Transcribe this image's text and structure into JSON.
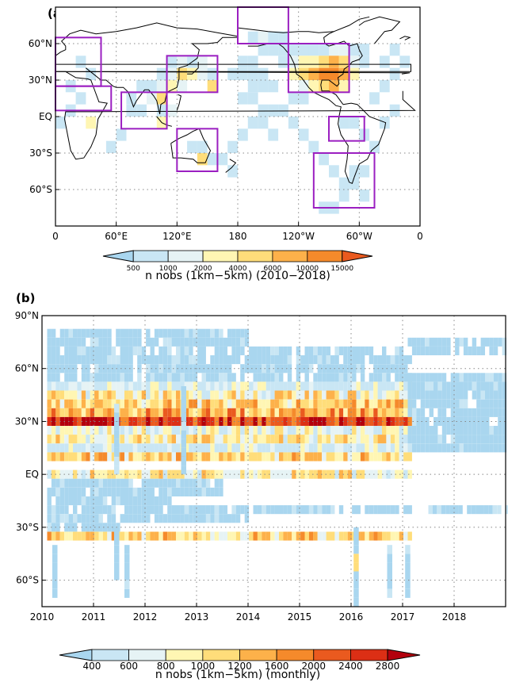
{
  "chart_data": [
    {
      "type": "heatmap",
      "panel_label": "(a)",
      "xticks": [
        "0",
        "60°E",
        "120°E",
        "180",
        "120°W",
        "60°W",
        "0"
      ],
      "yticks": [
        "60°N",
        "30°N",
        "EQ",
        "30°S",
        "60°S"
      ],
      "xlim": [
        0,
        360
      ],
      "ylim": [
        -90,
        90
      ],
      "grid": true,
      "colorbar": {
        "label": "n nobs (1km−5km) (2010−2018)",
        "levels": [
          "500",
          "1000",
          "2000",
          "4000",
          "6000",
          "10000",
          "15000"
        ],
        "colors": [
          "#a9d6ef",
          "#c9e6f4",
          "#e6f3f5",
          "#fff6b3",
          "#ffdd7a",
          "#fdb14a",
          "#f58a2b",
          "#ea5a1f"
        ]
      },
      "cells": [
        [
          225,
          55,
          1
        ],
        [
          235,
          55,
          1
        ],
        [
          245,
          55,
          1
        ],
        [
          255,
          55,
          1
        ],
        [
          265,
          55,
          1
        ],
        [
          275,
          55,
          2
        ],
        [
          285,
          55,
          2
        ],
        [
          295,
          55,
          1
        ],
        [
          305,
          55,
          1
        ],
        [
          225,
          45,
          1
        ],
        [
          235,
          45,
          2
        ],
        [
          245,
          45,
          3
        ],
        [
          255,
          45,
          3
        ],
        [
          265,
          45,
          4
        ],
        [
          275,
          45,
          5
        ],
        [
          285,
          45,
          4
        ],
        [
          295,
          45,
          2
        ],
        [
          305,
          45,
          1
        ],
        [
          235,
          35,
          3
        ],
        [
          245,
          35,
          4
        ],
        [
          255,
          35,
          5
        ],
        [
          265,
          35,
          6
        ],
        [
          275,
          35,
          6
        ],
        [
          285,
          35,
          5
        ],
        [
          295,
          35,
          3
        ],
        [
          245,
          25,
          2
        ],
        [
          255,
          25,
          3
        ],
        [
          265,
          25,
          4
        ],
        [
          275,
          25,
          5
        ],
        [
          285,
          25,
          3
        ],
        [
          115,
          45,
          1
        ],
        [
          125,
          45,
          2
        ],
        [
          135,
          45,
          1
        ],
        [
          145,
          45,
          2
        ],
        [
          105,
          35,
          1
        ],
        [
          115,
          35,
          2
        ],
        [
          125,
          35,
          4
        ],
        [
          135,
          35,
          3
        ],
        [
          145,
          35,
          2
        ],
        [
          155,
          35,
          1
        ],
        [
          105,
          25,
          2
        ],
        [
          115,
          25,
          3
        ],
        [
          125,
          25,
          2
        ],
        [
          155,
          25,
          4
        ],
        [
          75,
          15,
          1
        ],
        [
          95,
          15,
          2
        ],
        [
          105,
          15,
          4
        ],
        [
          105,
          5,
          1
        ],
        [
          115,
          5,
          2
        ],
        [
          105,
          -5,
          3
        ],
        [
          85,
          5,
          1
        ],
        [
          35,
          -5,
          3
        ],
        [
          145,
          -35,
          4
        ],
        [
          135,
          -25,
          1
        ],
        [
          145,
          -25,
          1
        ],
        [
          155,
          -35,
          1
        ],
        [
          195,
          65,
          1
        ],
        [
          205,
          65,
          2
        ],
        [
          215,
          65,
          1
        ],
        [
          225,
          65,
          1
        ],
        [
          205,
          55,
          1
        ],
        [
          215,
          55,
          1
        ],
        [
          185,
          45,
          1
        ],
        [
          195,
          45,
          1
        ],
        [
          175,
          35,
          1
        ],
        [
          185,
          35,
          1
        ],
        [
          195,
          35,
          1
        ],
        [
          205,
          35,
          1
        ],
        [
          195,
          25,
          1
        ],
        [
          205,
          25,
          1
        ],
        [
          215,
          25,
          1
        ],
        [
          185,
          15,
          1
        ],
        [
          195,
          15,
          1
        ],
        [
          205,
          5,
          1
        ],
        [
          215,
          5,
          1
        ],
        [
          195,
          -5,
          1
        ],
        [
          205,
          -5,
          1
        ],
        [
          215,
          -15,
          1
        ],
        [
          185,
          -15,
          1
        ],
        [
          175,
          -25,
          1
        ],
        [
          165,
          -35,
          1
        ],
        [
          175,
          -45,
          1
        ],
        [
          235,
          15,
          1
        ],
        [
          245,
          15,
          1
        ],
        [
          225,
          5,
          1
        ],
        [
          235,
          -5,
          1
        ],
        [
          245,
          -15,
          1
        ],
        [
          255,
          -25,
          1
        ],
        [
          265,
          -35,
          1
        ],
        [
          275,
          -45,
          1
        ],
        [
          285,
          -55,
          1
        ],
        [
          295,
          -55,
          1
        ],
        [
          305,
          -65,
          1
        ],
        [
          285,
          -65,
          1
        ],
        [
          295,
          -45,
          1
        ],
        [
          305,
          -45,
          1
        ],
        [
          285,
          -5,
          1
        ],
        [
          295,
          -5,
          1
        ],
        [
          305,
          -15,
          1
        ],
        [
          315,
          -25,
          1
        ],
        [
          325,
          -5,
          1
        ],
        [
          335,
          5,
          1
        ],
        [
          315,
          15,
          1
        ],
        [
          325,
          25,
          1
        ],
        [
          335,
          35,
          1
        ],
        [
          345,
          45,
          1
        ],
        [
          325,
          45,
          1
        ],
        [
          335,
          55,
          1
        ],
        [
          25,
          45,
          1
        ],
        [
          35,
          35,
          1
        ],
        [
          15,
          25,
          1
        ],
        [
          25,
          15,
          1
        ],
        [
          15,
          5,
          1
        ],
        [
          5,
          -5,
          1
        ],
        [
          85,
          25,
          1
        ],
        [
          95,
          25,
          1
        ],
        [
          75,
          5,
          1
        ],
        [
          65,
          -15,
          1
        ],
        [
          55,
          -25,
          1
        ],
        [
          265,
          -75,
          1
        ],
        [
          275,
          -75,
          1
        ]
      ],
      "boxes": [
        {
          "lon": [
            0,
            45
          ],
          "lat": [
            25,
            65
          ]
        },
        {
          "lon": [
            0,
            55
          ],
          "lat": [
            5,
            25
          ]
        },
        {
          "lon": [
            65,
            110
          ],
          "lat": [
            -10,
            20
          ]
        },
        {
          "lon": [
            110,
            160
          ],
          "lat": [
            20,
            50
          ]
        },
        {
          "lon": [
            120,
            160
          ],
          "lat": [
            -45,
            -10
          ]
        },
        {
          "lon": [
            180,
            230
          ],
          "lat": [
            60,
            90
          ]
        },
        {
          "lon": [
            230,
            290
          ],
          "lat": [
            20,
            60
          ]
        },
        {
          "lon": [
            270,
            305
          ],
          "lat": [
            -20,
            0
          ]
        },
        {
          "lon": [
            255,
            315
          ],
          "lat": [
            -75,
            -30
          ]
        }
      ]
    },
    {
      "type": "heatmap",
      "panel_label": "(b)",
      "xticks": [
        "2010",
        "2011",
        "2012",
        "2013",
        "2014",
        "2015",
        "2016",
        "2017",
        "2018"
      ],
      "yticks": [
        "90°N",
        "60°N",
        "30°N",
        "EQ",
        "30°S",
        "60°S"
      ],
      "xlim": [
        2010,
        2019
      ],
      "ylim": [
        -75,
        90
      ],
      "grid": true,
      "colorbar": {
        "label": "n nobs (1km−5km) (monthly)",
        "levels": [
          "400",
          "600",
          "800",
          "1000",
          "1200",
          "1600",
          "2000",
          "2400",
          "2800"
        ],
        "colors": [
          "#a9d6ef",
          "#c9e6f4",
          "#e6f3f5",
          "#fff6b3",
          "#ffdd7a",
          "#fdb14a",
          "#f58a2b",
          "#ea5a1f",
          "#dc2f15",
          "#b3000d"
        ]
      },
      "bands": [
        {
          "lat": 80,
          "start": 2010.1,
          "end": 2014.0,
          "base": 0
        },
        {
          "lat": 75,
          "start": 2010.1,
          "end": 2014.0,
          "base": 0
        },
        {
          "lat": 70,
          "start": 2010.1,
          "end": 2017.1,
          "base": 0
        },
        {
          "lat": 65,
          "start": 2010.1,
          "end": 2017.1,
          "base": 0
        },
        {
          "lat": 60,
          "start": 2010.1,
          "end": 2017.1,
          "base": 0
        },
        {
          "lat": 75,
          "start": 2017.1,
          "end": 2019.0,
          "base": 0
        },
        {
          "lat": 70,
          "start": 2017.1,
          "end": 2019.0,
          "base": 0
        },
        {
          "lat": 55,
          "start": 2010.1,
          "end": 2017.1,
          "base": 0
        },
        {
          "lat": 50,
          "start": 2010.1,
          "end": 2017.1,
          "base": 1
        },
        {
          "lat": 45,
          "start": 2010.1,
          "end": 2017.1,
          "base": 3
        },
        {
          "lat": 40,
          "start": 2010.1,
          "end": 2017.1,
          "base": 4
        },
        {
          "lat": 35,
          "start": 2010.1,
          "end": 2017.1,
          "base": 5
        },
        {
          "lat": 30,
          "start": 2010.1,
          "end": 2017.1,
          "base": 8
        },
        {
          "lat": 25,
          "start": 2010.1,
          "end": 2017.1,
          "base": 2
        },
        {
          "lat": 20,
          "start": 2010.1,
          "end": 2017.1,
          "base": 3
        },
        {
          "lat": 15,
          "start": 2010.1,
          "end": 2017.1,
          "base": 1
        },
        {
          "lat": 10,
          "start": 2010.1,
          "end": 2017.1,
          "base": 4
        },
        {
          "lat": 55,
          "start": 2017.1,
          "end": 2019.0,
          "base": 0
        },
        {
          "lat": 50,
          "start": 2017.1,
          "end": 2019.0,
          "base": 0
        },
        {
          "lat": 45,
          "start": 2017.1,
          "end": 2019.0,
          "base": 0
        },
        {
          "lat": 40,
          "start": 2017.1,
          "end": 2019.0,
          "base": 0
        },
        {
          "lat": 35,
          "start": 2017.1,
          "end": 2019.0,
          "base": 0
        },
        {
          "lat": 30,
          "start": 2017.1,
          "end": 2019.0,
          "base": 0
        },
        {
          "lat": 25,
          "start": 2017.1,
          "end": 2019.0,
          "base": 0
        },
        {
          "lat": 20,
          "start": 2017.1,
          "end": 2019.0,
          "base": 0
        },
        {
          "lat": 15,
          "start": 2017.1,
          "end": 2019.0,
          "base": 0
        },
        {
          "lat": 0,
          "start": 2010.1,
          "end": 2017.1,
          "base": 3
        },
        {
          "lat": -5,
          "start": 2010.1,
          "end": 2013.5,
          "base": 0
        },
        {
          "lat": -10,
          "start": 2010.1,
          "end": 2013.5,
          "base": 0
        },
        {
          "lat": -15,
          "start": 2010.1,
          "end": 2012.5,
          "base": 0
        },
        {
          "lat": -20,
          "start": 2010.1,
          "end": 2017.1,
          "base": 0
        },
        {
          "lat": -25,
          "start": 2010.1,
          "end": 2014.0,
          "base": 0
        },
        {
          "lat": -30,
          "start": 2010.1,
          "end": 2011.5,
          "base": 0
        },
        {
          "lat": -35,
          "start": 2010.1,
          "end": 2017.1,
          "base": 4
        },
        {
          "lat": -20,
          "start": 2017.5,
          "end": 2019.0,
          "base": 0
        }
      ],
      "columns": [
        {
          "time": 2010.2,
          "lat": [
            -70,
            -40
          ]
        },
        {
          "time": 2011.4,
          "lat": [
            -60,
            -30
          ]
        },
        {
          "time": 2011.6,
          "lat": [
            -70,
            -40
          ]
        },
        {
          "time": 2016.05,
          "lat": [
            -75,
            -30
          ]
        },
        {
          "time": 2016.7,
          "lat": [
            -70,
            -40
          ]
        },
        {
          "time": 2017.05,
          "lat": [
            -70,
            -40
          ]
        },
        {
          "time": 2011.4,
          "lat": [
            0,
            40
          ]
        },
        {
          "time": 2012.7,
          "lat": [
            0,
            50
          ]
        }
      ]
    }
  ]
}
